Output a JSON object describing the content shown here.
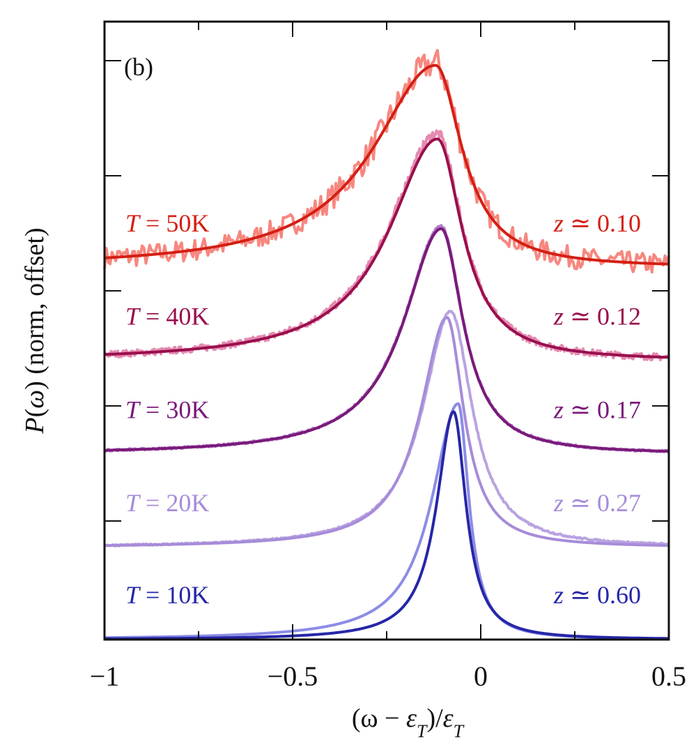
{
  "chart_data": {
    "type": "line",
    "panel_label": "(b)",
    "xlabel": "(ω − ε_T)/ε_T",
    "xlabel_parts": {
      "open": "(ω − ",
      "eps": "ε",
      "sub": "T",
      "mid": ")/",
      "eps2": "ε",
      "sub2": "T"
    },
    "ylabel": "P(ω) (norm, offset)",
    "ylabel_parts": {
      "P": "P",
      "rest1": "(",
      "omega": "ω",
      "rest2": ") (norm, offset)"
    },
    "xlim": [
      -1,
      0.5
    ],
    "ylim": [
      0,
      5.37
    ],
    "x_ticks": [
      -1,
      -0.5,
      0,
      0.5
    ],
    "x_tick_labels": [
      "−1",
      "−0.5",
      "0",
      "0.5"
    ],
    "x_minor_ticks": [
      -0.75,
      -0.25,
      0.25
    ],
    "y_ticks": [
      1.0,
      2.0,
      3.0,
      4.0,
      5.0
    ],
    "grid": false,
    "legend": "none",
    "series": [
      {
        "name": "T = 10K",
        "temperature_label": {
          "T": "T",
          "rest": " = 10K"
        },
        "z_label": {
          "z": "z",
          "rest": " ≃ 0.60"
        },
        "offset": 0.0,
        "peak_x": -0.072,
        "peak_height": 1.98,
        "width_left": 0.055,
        "width_right": 0.04,
        "exp_peak_x": -0.06,
        "exp_peak_height": 2.05,
        "exp_width_left": 0.085,
        "exp_width_right": 0.035,
        "noise": 0.0,
        "fit_color": "#2626a8",
        "exp_color": "#8c8ce6"
      },
      {
        "name": "T = 20K",
        "temperature_label": {
          "T": "T",
          "rest": " = 20K"
        },
        "z_label": {
          "z": "z",
          "rest": " ≃ 0.27"
        },
        "offset": 0.8,
        "peak_x": -0.09,
        "peak_height": 2.0,
        "width_left": 0.085,
        "width_right": 0.055,
        "exp_peak_x": -0.08,
        "exp_peak_height": 2.05,
        "exp_width_left": 0.09,
        "exp_width_right": 0.07,
        "noise": 0.01,
        "fit_color": "#a68cd9",
        "exp_color": "#b9a3e0"
      },
      {
        "name": "T = 30K",
        "temperature_label": {
          "T": "T",
          "rest": " = 30K"
        },
        "z_label": {
          "z": "z",
          "rest": " ≃ 0.17"
        },
        "offset": 1.61,
        "peak_x": -0.105,
        "peak_height": 1.96,
        "width_left": 0.12,
        "width_right": 0.07,
        "exp_peak_x": -0.105,
        "exp_peak_height": 1.98,
        "exp_width_left": 0.12,
        "exp_width_right": 0.07,
        "noise": 0.012,
        "fit_color": "#7a1a7a",
        "exp_color": "#b07ac9"
      },
      {
        "name": "T = 40K",
        "temperature_label": {
          "T": "T",
          "rest": " = 40K"
        },
        "z_label": {
          "z": "z",
          "rest": " ≃ 0.12"
        },
        "offset": 2.42,
        "peak_x": -0.115,
        "peak_height": 1.93,
        "width_left": 0.155,
        "width_right": 0.08,
        "exp_peak_x": -0.115,
        "exp_peak_height": 1.98,
        "exp_width_left": 0.155,
        "exp_width_right": 0.08,
        "noise": 0.04,
        "fit_color": "#990f4d",
        "exp_color": "#e58ab0"
      },
      {
        "name": "T = 50K",
        "temperature_label": {
          "T": "T",
          "rest": " = 50K"
        },
        "z_label": {
          "z": "z",
          "rest": " ≃ 0.10"
        },
        "offset": 3.23,
        "peak_x": -0.12,
        "peak_height": 1.76,
        "width_left": 0.2,
        "width_right": 0.085,
        "exp_peak_x": -0.12,
        "exp_peak_height": 1.78,
        "exp_width_left": 0.2,
        "exp_width_right": 0.085,
        "noise": 0.13,
        "fit_color": "#d41f14",
        "exp_color": "#f7877f"
      }
    ]
  }
}
